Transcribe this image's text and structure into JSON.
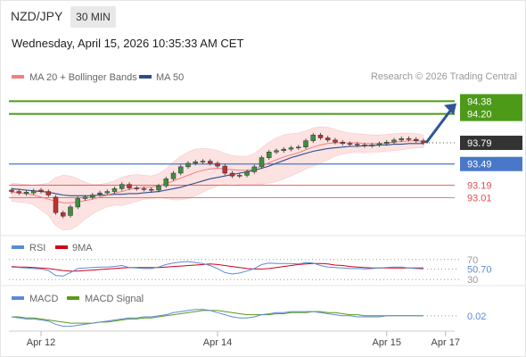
{
  "header": {
    "symbol": "NZD/JPY",
    "timeframe": "30 MIN",
    "datetime": "Wednesday, April 15, 2026 10:35:33 AM CET",
    "credit": "Research © 2026 Trading Central"
  },
  "colors": {
    "ma20": "#f08080",
    "ma50": "#2b4f8c",
    "bollinger_fill": "#fde2e2",
    "target_green": "#4c9a18",
    "pivot_blue": "#4a78c8",
    "support_red": "#e05050",
    "current_dark": "#333333",
    "arrow": "#2f5597",
    "candle_up": "#3d8f3d",
    "candle_down": "#c03030",
    "rsi": "#5b8ad6",
    "rsi_ma": "#d0021b",
    "macd": "#5b8ad6",
    "macd_signal": "#5a9a1a"
  },
  "chart_data": [
    {
      "type": "candlestick",
      "legend": [
        "MA 20 + Bollinger Bands",
        "MA 50"
      ],
      "ylim": [
        92.55,
        94.55
      ],
      "x_ticks": [
        {
          "label": "Apr 12",
          "index": 4
        },
        {
          "label": "Apr 14",
          "index": 28
        },
        {
          "label": "Apr 15",
          "index": 51
        },
        {
          "label": "Apr 17",
          "index": 59
        }
      ],
      "levels": [
        {
          "value": 94.38,
          "label": "94.38",
          "kind": "target"
        },
        {
          "value": 94.2,
          "label": "94.20",
          "kind": "target"
        },
        {
          "value": 93.79,
          "label": "93.79",
          "kind": "current"
        },
        {
          "value": 93.49,
          "label": "93.49",
          "kind": "pivot"
        },
        {
          "value": 93.19,
          "label": "93.19",
          "kind": "support"
        },
        {
          "value": 93.01,
          "label": "93.01",
          "kind": "support"
        }
      ],
      "close": [
        93.1,
        93.08,
        93.09,
        93.11,
        93.1,
        93.05,
        92.8,
        92.75,
        92.88,
        93.0,
        93.02,
        93.05,
        93.08,
        93.1,
        93.14,
        93.2,
        93.15,
        93.14,
        93.13,
        93.12,
        93.18,
        93.28,
        93.36,
        93.45,
        93.5,
        93.52,
        93.53,
        93.5,
        93.46,
        93.36,
        93.32,
        93.33,
        93.38,
        93.45,
        93.58,
        93.66,
        93.68,
        93.7,
        93.72,
        93.73,
        93.82,
        93.9,
        93.86,
        93.83,
        93.8,
        93.78,
        93.77,
        93.76,
        93.75,
        93.76,
        93.78,
        93.8,
        93.83,
        93.85,
        93.84,
        93.82,
        93.79
      ],
      "open": [
        93.12,
        93.1,
        93.07,
        93.08,
        93.12,
        93.1,
        93.02,
        92.8,
        92.76,
        92.88,
        93.0,
        93.02,
        93.06,
        93.08,
        93.1,
        93.14,
        93.2,
        93.15,
        93.14,
        93.13,
        93.12,
        93.18,
        93.28,
        93.36,
        93.45,
        93.5,
        93.52,
        93.53,
        93.5,
        93.46,
        93.36,
        93.32,
        93.33,
        93.38,
        93.45,
        93.58,
        93.66,
        93.68,
        93.7,
        93.72,
        93.73,
        93.82,
        93.9,
        93.86,
        93.83,
        93.8,
        93.78,
        93.77,
        93.76,
        93.75,
        93.76,
        93.78,
        93.8,
        93.83,
        93.85,
        93.84,
        93.82
      ],
      "ma20": [
        93.09,
        93.08,
        93.07,
        93.05,
        93.02,
        92.99,
        92.96,
        92.94,
        92.94,
        92.95,
        92.97,
        92.99,
        93.02,
        93.05,
        93.08,
        93.1,
        93.13,
        93.15,
        93.16,
        93.16,
        93.18,
        93.21,
        93.25,
        93.29,
        93.33,
        93.37,
        93.4,
        93.42,
        93.43,
        93.42,
        93.41,
        93.4,
        93.4,
        93.42,
        93.46,
        93.51,
        93.55,
        93.59,
        93.62,
        93.65,
        93.69,
        93.73,
        93.76,
        93.78,
        93.79,
        93.79,
        93.79,
        93.79,
        93.78,
        93.78,
        93.78,
        93.79,
        93.8,
        93.81,
        93.82,
        93.82,
        93.81
      ],
      "ma50": [
        93.14,
        93.13,
        93.12,
        93.11,
        93.1,
        93.09,
        93.07,
        93.05,
        93.04,
        93.04,
        93.04,
        93.04,
        93.05,
        93.05,
        93.06,
        93.06,
        93.07,
        93.07,
        93.08,
        93.09,
        93.1,
        93.12,
        93.14,
        93.16,
        93.19,
        93.22,
        93.25,
        93.28,
        93.3,
        93.32,
        93.34,
        93.36,
        93.38,
        93.4,
        93.43,
        93.46,
        93.5,
        93.54,
        93.58,
        93.61,
        93.64,
        93.67,
        93.69,
        93.71,
        93.72,
        93.73,
        93.74,
        93.74,
        93.75,
        93.75,
        93.76,
        93.76,
        93.77,
        93.77,
        93.78,
        93.78,
        93.78
      ],
      "bb_upper": [
        93.22,
        93.21,
        93.2,
        93.19,
        93.2,
        93.22,
        93.3,
        93.33,
        93.32,
        93.28,
        93.23,
        93.2,
        93.2,
        93.22,
        93.25,
        93.3,
        93.33,
        93.34,
        93.33,
        93.32,
        93.35,
        93.42,
        93.52,
        93.6,
        93.66,
        93.7,
        93.71,
        93.7,
        93.68,
        93.64,
        93.61,
        93.6,
        93.6,
        93.64,
        93.72,
        93.8,
        93.86,
        93.9,
        93.92,
        93.93,
        93.96,
        94.0,
        94.02,
        94.01,
        93.98,
        93.95,
        93.93,
        93.92,
        93.91,
        93.9,
        93.9,
        93.91,
        93.92,
        93.93,
        93.93,
        93.92,
        93.9
      ],
      "bb_lower": [
        92.96,
        92.95,
        92.94,
        92.91,
        92.84,
        92.76,
        92.62,
        92.55,
        92.56,
        92.62,
        92.71,
        92.78,
        92.84,
        92.88,
        92.91,
        92.9,
        92.93,
        92.96,
        92.99,
        93.0,
        93.01,
        93.0,
        92.98,
        92.98,
        93.0,
        93.04,
        93.09,
        93.14,
        93.18,
        93.2,
        93.21,
        93.2,
        93.2,
        93.2,
        93.2,
        93.22,
        93.24,
        93.28,
        93.32,
        93.37,
        93.42,
        93.46,
        93.5,
        93.55,
        93.6,
        93.63,
        93.65,
        93.66,
        93.65,
        93.66,
        93.66,
        93.67,
        93.68,
        93.69,
        93.71,
        93.72,
        93.72
      ],
      "projection": {
        "from_index": 56,
        "from_value": 93.79,
        "to_value": 94.35
      }
    },
    {
      "type": "line",
      "indicator": "RSI",
      "legend": [
        "RSI",
        "9MA"
      ],
      "levels": [
        70,
        30
      ],
      "ylim": [
        25,
        75
      ],
      "value_label": "50.70",
      "rsi": [
        55,
        54,
        53,
        52,
        51,
        48,
        38,
        37,
        44,
        52,
        53,
        54,
        55,
        55,
        56,
        58,
        54,
        53,
        52,
        52,
        55,
        60,
        63,
        65,
        66,
        64,
        62,
        58,
        52,
        44,
        41,
        43,
        47,
        52,
        60,
        63,
        62,
        62,
        62,
        61,
        64,
        63,
        58,
        55,
        54,
        53,
        52,
        52,
        51,
        52,
        53,
        54,
        55,
        55,
        53,
        52,
        51
      ],
      "rsi_ma": [
        56,
        55,
        55,
        54,
        53,
        52,
        50,
        48,
        47,
        47,
        48,
        49,
        50,
        51,
        52,
        53,
        54,
        54,
        54,
        54,
        54,
        55,
        56,
        57,
        58,
        59,
        60,
        61,
        60,
        58,
        56,
        54,
        52,
        51,
        51,
        52,
        54,
        56,
        58,
        60,
        61,
        62,
        62,
        61,
        59,
        58,
        56,
        55,
        54,
        53,
        53,
        53,
        53,
        53,
        53,
        53,
        53
      ]
    },
    {
      "type": "line",
      "indicator": "MACD",
      "legend": [
        "MACD",
        "MACD Signal"
      ],
      "value_label": "0.02",
      "ylim": [
        -0.1,
        0.12
      ],
      "macd": [
        0.01,
        0.0,
        -0.01,
        -0.01,
        -0.02,
        -0.03,
        -0.06,
        -0.08,
        -0.08,
        -0.07,
        -0.06,
        -0.05,
        -0.04,
        -0.03,
        -0.02,
        -0.01,
        0.0,
        0.0,
        0.01,
        0.01,
        0.02,
        0.03,
        0.05,
        0.06,
        0.07,
        0.08,
        0.08,
        0.07,
        0.05,
        0.03,
        0.01,
        0.0,
        0.0,
        0.01,
        0.03,
        0.04,
        0.05,
        0.05,
        0.06,
        0.06,
        0.06,
        0.06,
        0.05,
        0.04,
        0.03,
        0.02,
        0.02,
        0.01,
        0.01,
        0.01,
        0.01,
        0.02,
        0.02,
        0.02,
        0.02,
        0.02,
        0.02
      ],
      "macd_signal": [
        0.01,
        0.01,
        0.0,
        0.0,
        -0.01,
        -0.02,
        -0.03,
        -0.04,
        -0.05,
        -0.05,
        -0.05,
        -0.05,
        -0.04,
        -0.04,
        -0.03,
        -0.02,
        -0.01,
        -0.01,
        0.0,
        0.0,
        0.01,
        0.02,
        0.03,
        0.04,
        0.05,
        0.06,
        0.07,
        0.07,
        0.07,
        0.06,
        0.05,
        0.04,
        0.03,
        0.03,
        0.03,
        0.03,
        0.04,
        0.04,
        0.05,
        0.05,
        0.05,
        0.06,
        0.06,
        0.05,
        0.05,
        0.04,
        0.03,
        0.03,
        0.02,
        0.02,
        0.02,
        0.02,
        0.02,
        0.02,
        0.02,
        0.02,
        0.02
      ]
    }
  ]
}
